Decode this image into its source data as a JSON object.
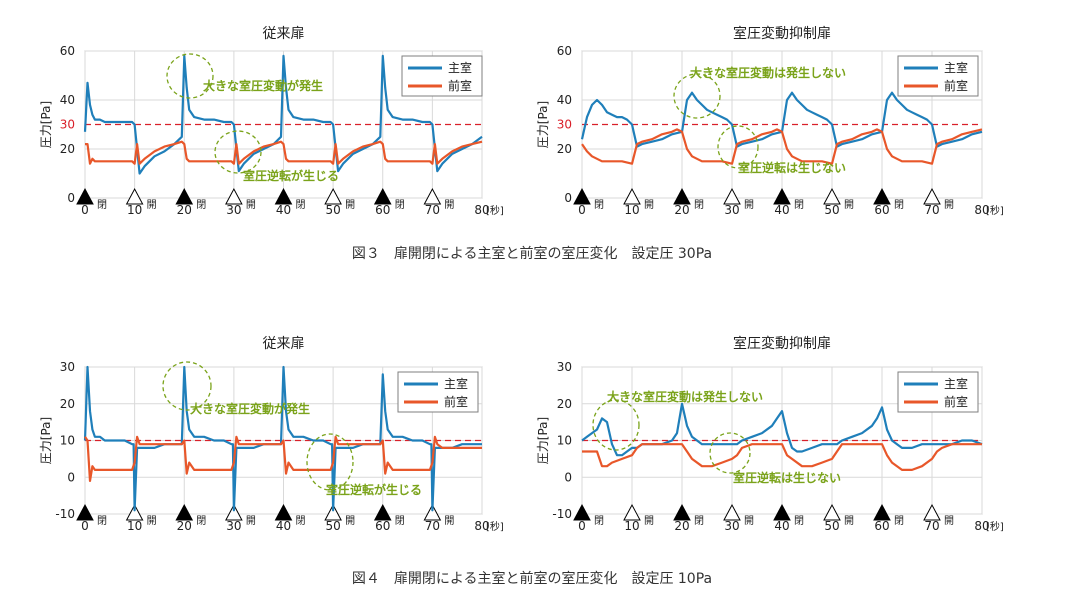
{
  "colors": {
    "main": "#1f7fba",
    "ante": "#e8572a",
    "setpoint": "#d9202a",
    "annot": "#7aa31a",
    "grid": "#d9d9d9"
  },
  "captions": {
    "fig3": "図３　扉開閉による主室と前室の室圧変化　設定圧 30Pa",
    "fig4": "図４　扉開閉による主室と前室の室圧変化　設定圧 10Pa"
  },
  "door_events": [
    {
      "t": 0,
      "state": "closed",
      "label": "閉"
    },
    {
      "t": 10,
      "state": "open",
      "label": "開"
    },
    {
      "t": 20,
      "state": "closed",
      "label": "閉"
    },
    {
      "t": 30,
      "state": "open",
      "label": "開"
    },
    {
      "t": 40,
      "state": "closed",
      "label": "閉"
    },
    {
      "t": 50,
      "state": "open",
      "label": "開"
    },
    {
      "t": 60,
      "state": "closed",
      "label": "閉"
    },
    {
      "t": 70,
      "state": "open",
      "label": "開"
    }
  ],
  "chart_data": [
    {
      "type": "line",
      "title": "従来扉",
      "ylabel": "圧力[Pa]",
      "xunit": "[秒]",
      "xlim": [
        0,
        80
      ],
      "ylim": [
        0,
        60
      ],
      "yticks": [
        0,
        20,
        40,
        60
      ],
      "xticks": [
        0,
        10,
        20,
        30,
        40,
        50,
        60,
        70,
        80
      ],
      "setpoint": 30,
      "grid": true,
      "legend": "top-right",
      "annotations": [
        "大きな室圧変動が発生",
        "室圧逆転が生じる"
      ],
      "series": [
        {
          "name": "主室",
          "x": [
            0,
            0.5,
            1,
            1.5,
            2,
            3,
            4,
            6,
            8,
            9.5,
            10,
            11,
            12,
            14,
            16,
            18,
            19.5,
            20,
            20.5,
            21,
            22,
            24,
            26,
            28,
            29.5,
            30,
            31,
            32,
            34,
            36,
            38,
            39.5,
            40,
            40.5,
            41,
            42,
            44,
            46,
            48,
            49.5,
            50,
            51,
            52,
            54,
            56,
            58,
            59.5,
            60,
            60.5,
            61,
            62,
            64,
            66,
            68,
            69.5,
            70,
            71,
            72,
            74,
            76,
            78,
            80
          ],
          "values": [
            27,
            47,
            38,
            34,
            32,
            32,
            31,
            31,
            31,
            31,
            30,
            10,
            13,
            17,
            19,
            22,
            25,
            58,
            45,
            36,
            33,
            32,
            32,
            31,
            31,
            30,
            11,
            14,
            18,
            20,
            22,
            25,
            58,
            45,
            36,
            33,
            32,
            32,
            31,
            31,
            30,
            11,
            14,
            18,
            20,
            22,
            25,
            58,
            45,
            36,
            33,
            32,
            32,
            31,
            31,
            30,
            11,
            14,
            18,
            20,
            22,
            25
          ]
        },
        {
          "name": "前室",
          "x": [
            0,
            0.5,
            1,
            1.5,
            2,
            3,
            4,
            6,
            8,
            9.5,
            10,
            10.5,
            11,
            12,
            14,
            16,
            18,
            19.5,
            20,
            20.5,
            21,
            22,
            24,
            26,
            28,
            29.5,
            30,
            30.5,
            31,
            32,
            34,
            36,
            38,
            39.5,
            40,
            40.5,
            41,
            42,
            44,
            46,
            48,
            49.5,
            50,
            50.5,
            51,
            52,
            54,
            56,
            58,
            59.5,
            60,
            60.5,
            61,
            62,
            64,
            66,
            68,
            69.5,
            70,
            70.5,
            71,
            72,
            74,
            76,
            78,
            80
          ],
          "values": [
            22,
            22,
            14,
            16,
            15,
            15,
            15,
            15,
            15,
            15,
            14,
            22,
            14,
            16,
            19,
            21,
            22,
            23,
            22,
            16,
            15,
            15,
            15,
            15,
            15,
            15,
            14,
            22,
            14,
            16,
            19,
            21,
            22,
            23,
            22,
            16,
            15,
            15,
            15,
            15,
            15,
            15,
            14,
            22,
            14,
            16,
            19,
            21,
            22,
            23,
            22,
            16,
            15,
            15,
            15,
            15,
            15,
            15,
            14,
            22,
            14,
            16,
            19,
            21,
            22,
            23
          ]
        }
      ]
    },
    {
      "type": "line",
      "title": "室圧変動抑制扉",
      "ylabel": "圧力[Pa]",
      "xunit": "[秒]",
      "xlim": [
        0,
        80
      ],
      "ylim": [
        0,
        60
      ],
      "yticks": [
        0,
        20,
        40,
        60
      ],
      "xticks": [
        0,
        10,
        20,
        30,
        40,
        50,
        60,
        70,
        80
      ],
      "setpoint": 30,
      "grid": true,
      "legend": "top-right",
      "annotations": [
        "大きな室圧変動は発生しない",
        "室圧逆転は生じない"
      ],
      "series": [
        {
          "name": "主室",
          "x": [
            0,
            1,
            2,
            3,
            4,
            5,
            6,
            7,
            8,
            9,
            10,
            11,
            12,
            14,
            16,
            18,
            20,
            21,
            22,
            23,
            24,
            25,
            26,
            27,
            28,
            29,
            30,
            31,
            32,
            34,
            36,
            38,
            40,
            41,
            42,
            43,
            44,
            45,
            46,
            47,
            48,
            49,
            50,
            51,
            52,
            54,
            56,
            58,
            60,
            61,
            62,
            63,
            64,
            65,
            66,
            67,
            68,
            69,
            70,
            71,
            72,
            74,
            76,
            78,
            80
          ],
          "values": [
            24,
            33,
            38,
            40,
            38,
            35,
            34,
            33,
            33,
            32,
            30,
            21,
            22,
            23,
            24,
            26,
            27,
            40,
            43,
            40,
            38,
            36,
            35,
            34,
            33,
            32,
            30,
            21,
            22,
            23,
            24,
            26,
            27,
            40,
            43,
            40,
            38,
            36,
            35,
            34,
            33,
            32,
            30,
            21,
            22,
            23,
            24,
            26,
            27,
            40,
            43,
            40,
            38,
            36,
            35,
            34,
            33,
            32,
            30,
            21,
            22,
            23,
            24,
            26,
            27
          ]
        },
        {
          "name": "前室",
          "x": [
            0,
            1,
            2,
            3,
            4,
            6,
            8,
            10,
            11,
            12,
            14,
            16,
            18,
            19,
            20,
            21,
            22,
            24,
            26,
            28,
            30,
            31,
            32,
            34,
            36,
            38,
            39,
            40,
            41,
            42,
            44,
            46,
            48,
            50,
            51,
            52,
            54,
            56,
            58,
            59,
            60,
            61,
            62,
            64,
            66,
            68,
            70,
            71,
            72,
            74,
            76,
            78,
            80
          ],
          "values": [
            22,
            19,
            17,
            16,
            15,
            15,
            15,
            14,
            22,
            23,
            24,
            26,
            27,
            28,
            27,
            20,
            17,
            15,
            15,
            15,
            14,
            22,
            23,
            24,
            26,
            27,
            28,
            27,
            20,
            17,
            15,
            15,
            15,
            14,
            22,
            23,
            24,
            26,
            27,
            28,
            27,
            20,
            17,
            15,
            15,
            15,
            14,
            22,
            23,
            24,
            26,
            27,
            28
          ]
        }
      ]
    },
    {
      "type": "line",
      "title": "従来扉",
      "ylabel": "圧力[Pa]",
      "xunit": "[秒]",
      "xlim": [
        0,
        80
      ],
      "ylim": [
        -10,
        30
      ],
      "yticks": [
        -10,
        0,
        10,
        20,
        30
      ],
      "xticks": [
        0,
        10,
        20,
        30,
        40,
        50,
        60,
        70,
        80
      ],
      "setpoint": 10,
      "grid": true,
      "legend": "top-right",
      "annotations": [
        "大きな室圧変動が発生",
        "室圧逆転が生じる"
      ],
      "series": [
        {
          "name": "主室",
          "x": [
            0,
            0.5,
            1,
            1.5,
            2,
            3,
            4,
            6,
            8,
            9.5,
            9.8,
            10,
            10.5,
            11,
            12,
            14,
            16,
            18,
            19.5,
            20,
            20.5,
            21,
            22,
            24,
            26,
            28,
            29.5,
            29.8,
            30,
            30.5,
            31,
            32,
            34,
            36,
            38,
            39.5,
            40,
            40.5,
            41,
            42,
            44,
            46,
            48,
            49.5,
            49.8,
            50,
            50.5,
            51,
            52,
            54,
            56,
            58,
            59.5,
            60,
            60.5,
            61,
            62,
            64,
            66,
            68,
            69.5,
            69.8,
            70,
            70.5,
            71,
            72,
            74,
            76,
            78,
            80
          ],
          "values": [
            10,
            30,
            18,
            13,
            11,
            11,
            10,
            10,
            10,
            9,
            9,
            -9,
            8,
            8,
            8,
            8,
            9,
            9,
            9,
            30,
            18,
            13,
            11,
            11,
            10,
            10,
            9,
            9,
            -9,
            8,
            8,
            8,
            8,
            9,
            9,
            9,
            30,
            18,
            13,
            11,
            11,
            10,
            10,
            9,
            9,
            -9,
            8,
            8,
            8,
            8,
            9,
            9,
            9,
            28,
            18,
            13,
            11,
            11,
            10,
            10,
            9,
            9,
            -9,
            8,
            8,
            8,
            8,
            9,
            9,
            9
          ]
        },
        {
          "name": "前室",
          "x": [
            0,
            0.5,
            1,
            1.5,
            2,
            4,
            6,
            8,
            9.5,
            10,
            10.5,
            11,
            12,
            14,
            16,
            18,
            19.5,
            20,
            20.5,
            21,
            22,
            24,
            26,
            28,
            29.5,
            30,
            30.5,
            31,
            32,
            34,
            36,
            38,
            39.5,
            40,
            40.5,
            41,
            42,
            44,
            46,
            48,
            49.5,
            50,
            50.5,
            51,
            52,
            54,
            56,
            58,
            59.5,
            60,
            60.5,
            61,
            62,
            64,
            66,
            68,
            69.5,
            70,
            70.5,
            71,
            72,
            74,
            76,
            78,
            80
          ],
          "values": [
            11,
            10,
            -1,
            3,
            2,
            2,
            2,
            2,
            2,
            4,
            11,
            9,
            9,
            9,
            9,
            9,
            9,
            10,
            1,
            4,
            2,
            2,
            2,
            2,
            2,
            4,
            11,
            9,
            9,
            9,
            9,
            9,
            9,
            10,
            1,
            4,
            2,
            2,
            2,
            2,
            2,
            4,
            11,
            9,
            9,
            9,
            9,
            9,
            9,
            10,
            1,
            4,
            2,
            2,
            2,
            2,
            2,
            4,
            11,
            9,
            8,
            8,
            8,
            8,
            8
          ]
        }
      ]
    },
    {
      "type": "line",
      "title": "室圧変動抑制扉",
      "ylabel": "圧力[Pa]",
      "xunit": "[秒]",
      "xlim": [
        0,
        80
      ],
      "ylim": [
        -10,
        30
      ],
      "yticks": [
        -10,
        0,
        10,
        20,
        30
      ],
      "xticks": [
        0,
        10,
        20,
        30,
        40,
        50,
        60,
        70,
        80
      ],
      "setpoint": 10,
      "grid": true,
      "legend": "top-right",
      "annotations": [
        "大きな室圧変動は発生しない",
        "室圧逆転は生じない"
      ],
      "series": [
        {
          "name": "主室",
          "x": [
            0,
            1,
            2,
            3,
            4,
            5,
            6,
            7,
            8,
            9,
            10,
            11,
            12,
            14,
            16,
            18,
            19,
            20,
            21,
            22,
            23,
            24,
            26,
            28,
            30,
            31,
            32,
            34,
            36,
            38,
            39,
            40,
            41,
            42,
            43,
            44,
            46,
            48,
            50,
            51,
            52,
            54,
            56,
            58,
            59,
            60,
            61,
            62,
            63,
            64,
            66,
            68,
            70,
            71,
            72,
            74,
            76,
            78,
            80
          ],
          "values": [
            10,
            11,
            12,
            13,
            16,
            15,
            9,
            6,
            6,
            7,
            8,
            8,
            9,
            9,
            9,
            10,
            12,
            20,
            14,
            11,
            10,
            9,
            9,
            9,
            9,
            9,
            10,
            11,
            12,
            14,
            16,
            18,
            12,
            8,
            7,
            7,
            8,
            9,
            9,
            9,
            10,
            11,
            12,
            14,
            16,
            19,
            13,
            10,
            9,
            8,
            8,
            9,
            9,
            9,
            9,
            9,
            10,
            10,
            9
          ]
        },
        {
          "name": "前室",
          "x": [
            0,
            1,
            2,
            3,
            4,
            5,
            6,
            8,
            10,
            11,
            12,
            14,
            16,
            18,
            19,
            20,
            21,
            22,
            24,
            26,
            28,
            30,
            31,
            32,
            34,
            36,
            38,
            39,
            40,
            41,
            42,
            44,
            46,
            48,
            50,
            51,
            52,
            54,
            56,
            58,
            59,
            60,
            61,
            62,
            64,
            66,
            68,
            70,
            71,
            72,
            74,
            76,
            78,
            80
          ],
          "values": [
            7,
            7,
            7,
            7,
            3,
            3,
            4,
            5,
            6,
            8,
            9,
            9,
            9,
            9,
            9,
            9,
            7,
            5,
            3,
            3,
            4,
            5,
            6,
            8,
            9,
            9,
            9,
            9,
            9,
            6,
            5,
            3,
            3,
            4,
            5,
            7,
            9,
            9,
            9,
            9,
            9,
            9,
            6,
            4,
            2,
            2,
            3,
            5,
            7,
            8,
            9,
            9,
            9,
            9
          ]
        }
      ]
    }
  ]
}
